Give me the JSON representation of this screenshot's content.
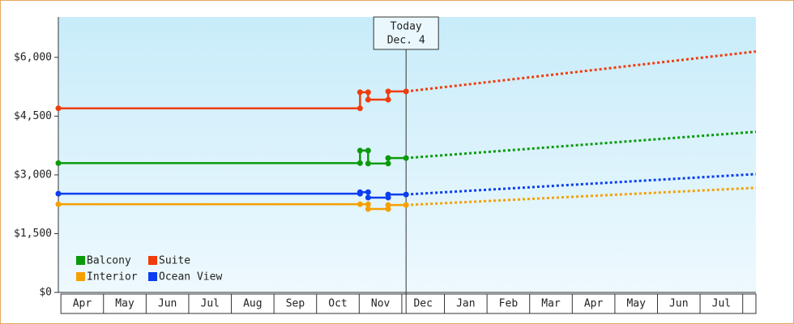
{
  "chart_data": {
    "type": "step-line",
    "xlim": [
      -0.06,
      16.31
    ],
    "ylim": [
      0,
      7030
    ],
    "yticks": [
      {
        "value": 0,
        "label": "$0"
      },
      {
        "value": 1500,
        "label": "$1,500"
      },
      {
        "value": 3000,
        "label": "$3,000"
      },
      {
        "value": 4500,
        "label": "$4,500"
      },
      {
        "value": 6000,
        "label": "$6,000"
      }
    ],
    "xticks": [
      {
        "value": 0.5,
        "label": "Apr"
      },
      {
        "value": 1.5,
        "label": "May"
      },
      {
        "value": 2.5,
        "label": "Jun"
      },
      {
        "value": 3.5,
        "label": "Jul"
      },
      {
        "value": 4.5,
        "label": "Aug"
      },
      {
        "value": 5.5,
        "label": "Sep"
      },
      {
        "value": 6.5,
        "label": "Oct"
      },
      {
        "value": 7.5,
        "label": "Nov"
      },
      {
        "value": 8.5,
        "label": "Dec"
      },
      {
        "value": 9.5,
        "label": "Jan"
      },
      {
        "value": 10.5,
        "label": "Feb"
      },
      {
        "value": 11.5,
        "label": "Mar"
      },
      {
        "value": 12.5,
        "label": "Apr"
      },
      {
        "value": 13.5,
        "label": "May"
      },
      {
        "value": 14.5,
        "label": "Jun"
      },
      {
        "value": 15.5,
        "label": "Jul"
      }
    ],
    "today": {
      "x": 8.1,
      "label": [
        "Today",
        "Dec. 4"
      ]
    },
    "legend": "bottom-left",
    "series": [
      {
        "name": "Balcony",
        "color": "#0a9a0a",
        "x": [
          -0.06,
          7.02,
          7.02,
          7.21,
          7.21,
          7.68,
          7.68,
          8.1
        ],
        "values": [
          3300,
          3300,
          3620,
          3620,
          3290,
          3290,
          3430,
          3430
        ],
        "forecast_x": [
          8.1,
          16.31
        ],
        "forecast_values": [
          3430,
          4100
        ]
      },
      {
        "name": "Interior",
        "color": "#f5a000",
        "x": [
          -0.06,
          7.02,
          7.21,
          7.21,
          7.68,
          7.68,
          8.1
        ],
        "values": [
          2250,
          2250,
          2250,
          2130,
          2130,
          2230,
          2230
        ],
        "forecast_x": [
          8.1,
          16.31
        ],
        "forecast_values": [
          2230,
          2670
        ]
      },
      {
        "name": "Suite",
        "color": "#f03c0a",
        "x": [
          -0.06,
          7.02,
          7.02,
          7.21,
          7.21,
          7.68,
          7.68,
          8.1
        ],
        "values": [
          4700,
          4700,
          5110,
          5110,
          4920,
          4920,
          5130,
          5130
        ],
        "forecast_x": [
          8.1,
          16.31
        ],
        "forecast_values": [
          5130,
          6150
        ]
      },
      {
        "name": "Ocean View",
        "color": "#0a3ef0",
        "x": [
          -0.06,
          7.02,
          7.02,
          7.21,
          7.21,
          7.68,
          7.68,
          8.1
        ],
        "values": [
          2520,
          2520,
          2560,
          2560,
          2420,
          2420,
          2500,
          2500
        ],
        "forecast_x": [
          8.1,
          16.31
        ],
        "forecast_values": [
          2500,
          3020
        ]
      }
    ]
  }
}
